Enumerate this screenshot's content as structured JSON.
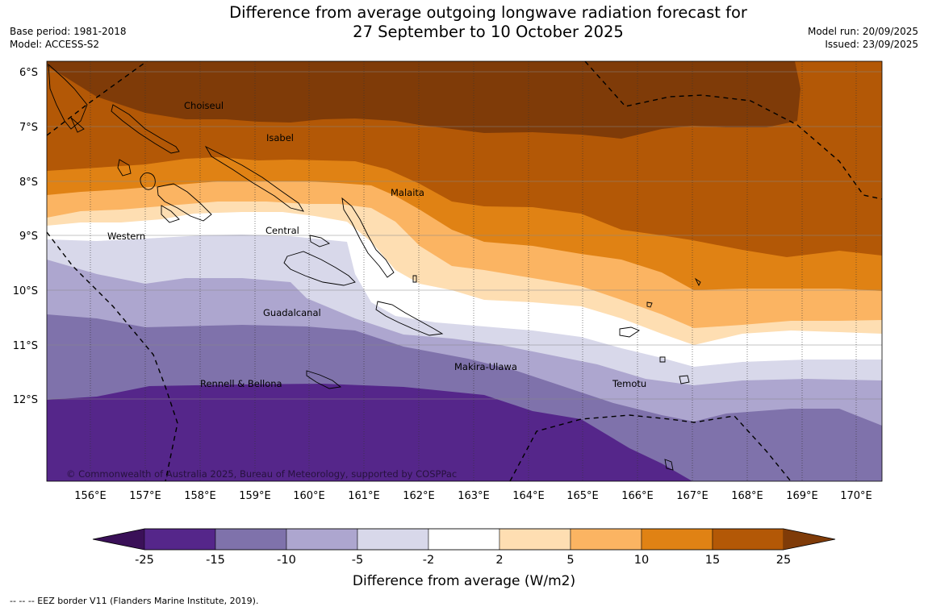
{
  "title": {
    "line1": "Difference from average outgoing longwave radiation forecast for",
    "line2": "27 September to 10 October 2025"
  },
  "meta_left": {
    "base_period": "Base period: 1981-2018",
    "model": "Model: ACCESS-S2"
  },
  "meta_right": {
    "model_run": "Model run: 20/09/2025",
    "issued": "Issued: 23/09/2025"
  },
  "map": {
    "lat_labels": [
      "6°S",
      "7°S",
      "8°S",
      "9°S",
      "10°S",
      "11°S",
      "12°S"
    ],
    "lon_labels": [
      "156°E",
      "157°E",
      "158°E",
      "159°E",
      "160°E",
      "161°E",
      "162°E",
      "163°E",
      "164°E",
      "165°E",
      "166°E",
      "167°E",
      "168°E",
      "169°E",
      "170°E"
    ],
    "provinces": [
      "Choiseul",
      "Isabel",
      "Malaita",
      "Western",
      "Central",
      "Guadalcanal",
      "Makira-Ulawa",
      "Temotu",
      "Rennell & Bellona"
    ],
    "copyright": "© Commonwealth of Australia 2025, Bureau of Meteorology, supported by COSPPac"
  },
  "colorbar": {
    "ticks": [
      "-25",
      "-15",
      "-10",
      "-5",
      "-2",
      "2",
      "5",
      "10",
      "15",
      "25"
    ],
    "colors": [
      "#3a1058",
      "#55268a",
      "#7f72ab",
      "#ada6cf",
      "#d8d8ea",
      "#ffffff",
      "#fedeb2",
      "#fbb462",
      "#e08214",
      "#b35806",
      "#7f3b08"
    ],
    "label": "Difference from average (W/m2)"
  },
  "footer": "--  --  -- EEZ border V11 (Flanders Marine Institute, 2019)."
}
